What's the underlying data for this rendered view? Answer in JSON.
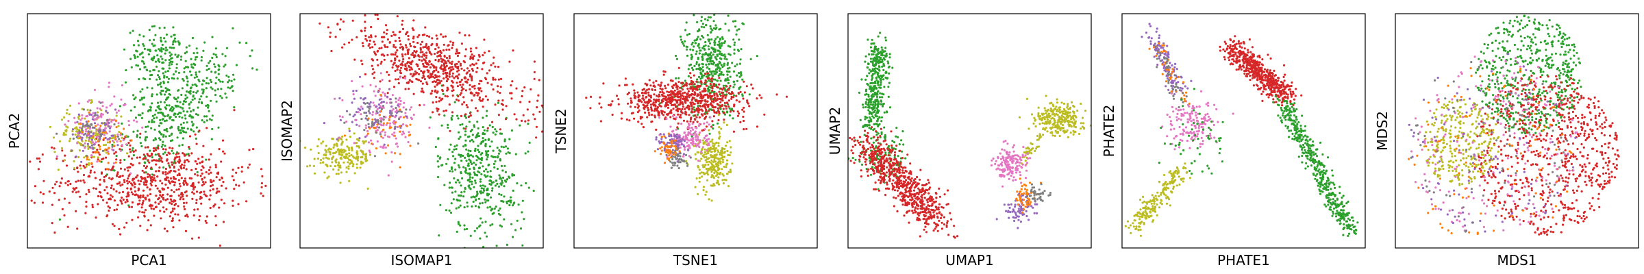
{
  "colors": {
    "green": "#2ca02c",
    "red": "#d62728",
    "olive": "#bcbd22",
    "pink": "#e377c2",
    "purple": "#9467bd",
    "orange": "#ff7f0e",
    "gray": "#7f7f7f",
    "frame": "#000000",
    "background": "#ffffff"
  },
  "chart_data": [
    {
      "type": "scatter",
      "xlabel": "PCA1",
      "ylabel": "PCA2",
      "title": "",
      "grid": false,
      "ticks": false,
      "xlim": [
        0,
        1
      ],
      "ylim": [
        0,
        1
      ],
      "clusters": [
        {
          "color": "green",
          "shape": "ellipse",
          "cx": 0.62,
          "cy": 0.6,
          "sx": 0.08,
          "sy": 0.16,
          "rot": -35,
          "n": 450
        },
        {
          "color": "green",
          "shape": "ellipse",
          "cx": 0.55,
          "cy": 0.82,
          "sx": 0.07,
          "sy": 0.06,
          "rot": 0,
          "n": 150
        },
        {
          "color": "red",
          "shape": "ellipse",
          "cx": 0.52,
          "cy": 0.28,
          "sx": 0.2,
          "sy": 0.09,
          "rot": 0,
          "n": 700
        },
        {
          "color": "olive",
          "shape": "ellipse",
          "cx": 0.25,
          "cy": 0.48,
          "sx": 0.07,
          "sy": 0.06,
          "rot": 0,
          "n": 150
        },
        {
          "color": "pink",
          "shape": "ellipse",
          "cx": 0.3,
          "cy": 0.52,
          "sx": 0.06,
          "sy": 0.07,
          "rot": 0,
          "n": 130
        },
        {
          "color": "purple",
          "shape": "ellipse",
          "cx": 0.28,
          "cy": 0.5,
          "sx": 0.05,
          "sy": 0.05,
          "rot": 0,
          "n": 60
        },
        {
          "color": "orange",
          "shape": "ellipse",
          "cx": 0.3,
          "cy": 0.46,
          "sx": 0.05,
          "sy": 0.05,
          "rot": 0,
          "n": 40
        },
        {
          "color": "gray",
          "shape": "ellipse",
          "cx": 0.27,
          "cy": 0.5,
          "sx": 0.05,
          "sy": 0.05,
          "rot": 0,
          "n": 40
        }
      ]
    },
    {
      "type": "scatter",
      "xlabel": "ISOMAP1",
      "ylabel": "ISOMAP2",
      "title": "",
      "grid": false,
      "ticks": false,
      "xlim": [
        0,
        1
      ],
      "ylim": [
        0,
        1
      ],
      "clusters": [
        {
          "color": "green",
          "shape": "ellipse",
          "cx": 0.74,
          "cy": 0.33,
          "sx": 0.08,
          "sy": 0.14,
          "rot": 10,
          "n": 450
        },
        {
          "color": "red",
          "shape": "ellipse",
          "cx": 0.55,
          "cy": 0.77,
          "sx": 0.2,
          "sy": 0.07,
          "rot": -25,
          "n": 700
        },
        {
          "color": "olive",
          "shape": "ellipse",
          "cx": 0.18,
          "cy": 0.39,
          "sx": 0.06,
          "sy": 0.04,
          "rot": 0,
          "n": 200
        },
        {
          "color": "pink",
          "shape": "ellipse",
          "cx": 0.35,
          "cy": 0.55,
          "sx": 0.07,
          "sy": 0.07,
          "rot": 0,
          "n": 150
        },
        {
          "color": "purple",
          "shape": "ellipse",
          "cx": 0.3,
          "cy": 0.58,
          "sx": 0.06,
          "sy": 0.05,
          "rot": 0,
          "n": 70
        },
        {
          "color": "orange",
          "shape": "ellipse",
          "cx": 0.35,
          "cy": 0.52,
          "sx": 0.06,
          "sy": 0.05,
          "rot": 0,
          "n": 40
        },
        {
          "color": "gray",
          "shape": "ellipse",
          "cx": 0.33,
          "cy": 0.55,
          "sx": 0.06,
          "sy": 0.05,
          "rot": 0,
          "n": 40
        }
      ]
    },
    {
      "type": "scatter",
      "xlabel": "TSNE1",
      "ylabel": "TSNE2",
      "title": "",
      "grid": false,
      "ticks": false,
      "xlim": [
        0,
        1
      ],
      "ylim": [
        0,
        1
      ],
      "clusters": [
        {
          "color": "green",
          "shape": "ellipse",
          "cx": 0.57,
          "cy": 0.78,
          "sx": 0.06,
          "sy": 0.11,
          "rot": 0,
          "n": 450
        },
        {
          "color": "red",
          "shape": "ellipse",
          "cx": 0.45,
          "cy": 0.63,
          "sx": 0.13,
          "sy": 0.045,
          "rot": 0,
          "n": 700
        },
        {
          "color": "olive",
          "shape": "ellipse",
          "cx": 0.57,
          "cy": 0.37,
          "sx": 0.035,
          "sy": 0.06,
          "rot": 0,
          "n": 250
        },
        {
          "color": "pink",
          "shape": "ellipse",
          "cx": 0.48,
          "cy": 0.47,
          "sx": 0.04,
          "sy": 0.04,
          "rot": 0,
          "n": 150
        },
        {
          "color": "purple",
          "shape": "ellipse",
          "cx": 0.41,
          "cy": 0.44,
          "sx": 0.03,
          "sy": 0.03,
          "rot": 0,
          "n": 80
        },
        {
          "color": "orange",
          "shape": "ellipse",
          "cx": 0.39,
          "cy": 0.42,
          "sx": 0.02,
          "sy": 0.03,
          "rot": 0,
          "n": 50
        },
        {
          "color": "gray",
          "shape": "ellipse",
          "cx": 0.43,
          "cy": 0.38,
          "sx": 0.02,
          "sy": 0.02,
          "rot": 0,
          "n": 40
        }
      ]
    },
    {
      "type": "scatter",
      "xlabel": "UMAP1",
      "ylabel": "UMAP2",
      "title": "",
      "grid": false,
      "ticks": false,
      "xlim": [
        0,
        1
      ],
      "ylim": [
        0,
        1
      ],
      "clusters": [
        {
          "color": "green",
          "shape": "line",
          "x0": 0.13,
          "y0": 0.86,
          "x1": 0.1,
          "y1": 0.52,
          "sx": 0.025,
          "sy": 0.025,
          "n": 350
        },
        {
          "color": "green",
          "shape": "ellipse",
          "cx": 0.14,
          "cy": 0.4,
          "sx": 0.05,
          "sy": 0.06,
          "rot": 0,
          "n": 120
        },
        {
          "color": "red",
          "shape": "line",
          "x0": 0.08,
          "y0": 0.44,
          "x1": 0.37,
          "y1": 0.12,
          "sx": 0.04,
          "sy": 0.04,
          "n": 700
        },
        {
          "color": "olive",
          "shape": "ellipse",
          "cx": 0.86,
          "cy": 0.55,
          "sx": 0.05,
          "sy": 0.035,
          "rot": 0,
          "n": 250
        },
        {
          "color": "olive",
          "shape": "line",
          "x0": 0.8,
          "y0": 0.5,
          "x1": 0.73,
          "y1": 0.38,
          "sx": 0.01,
          "sy": 0.01,
          "n": 40
        },
        {
          "color": "pink",
          "shape": "ellipse",
          "cx": 0.67,
          "cy": 0.36,
          "sx": 0.035,
          "sy": 0.03,
          "rot": 0,
          "n": 150
        },
        {
          "color": "purple",
          "shape": "ellipse",
          "cx": 0.71,
          "cy": 0.17,
          "sx": 0.03,
          "sy": 0.03,
          "rot": 0,
          "n": 80
        },
        {
          "color": "orange",
          "shape": "ellipse",
          "cx": 0.73,
          "cy": 0.22,
          "sx": 0.02,
          "sy": 0.03,
          "rot": 0,
          "n": 50
        },
        {
          "color": "gray",
          "shape": "ellipse",
          "cx": 0.78,
          "cy": 0.23,
          "sx": 0.02,
          "sy": 0.02,
          "rot": 0,
          "n": 40
        }
      ]
    },
    {
      "type": "scatter",
      "xlabel": "PHATE1",
      "ylabel": "PHATE2",
      "title": "",
      "grid": false,
      "ticks": false,
      "xlim": [
        0,
        1
      ],
      "ylim": [
        0,
        1
      ],
      "clusters": [
        {
          "color": "red",
          "shape": "line",
          "x0": 0.45,
          "y0": 0.86,
          "x1": 0.68,
          "y1": 0.64,
          "sx": 0.025,
          "sy": 0.025,
          "n": 550
        },
        {
          "color": "green",
          "shape": "line",
          "x0": 0.66,
          "y0": 0.62,
          "x1": 0.94,
          "y1": 0.07,
          "sx": 0.02,
          "sy": 0.02,
          "n": 450
        },
        {
          "color": "olive",
          "shape": "line",
          "x0": 0.05,
          "y0": 0.09,
          "x1": 0.25,
          "y1": 0.34,
          "sx": 0.02,
          "sy": 0.02,
          "n": 200
        },
        {
          "color": "pink",
          "shape": "ellipse",
          "cx": 0.3,
          "cy": 0.53,
          "sx": 0.05,
          "sy": 0.05,
          "rot": 0,
          "n": 150
        },
        {
          "color": "purple",
          "shape": "line",
          "x0": 0.12,
          "y0": 0.92,
          "x1": 0.24,
          "y1": 0.66,
          "sx": 0.02,
          "sy": 0.02,
          "n": 120
        },
        {
          "color": "orange",
          "shape": "line",
          "x0": 0.14,
          "y0": 0.88,
          "x1": 0.26,
          "y1": 0.62,
          "sx": 0.015,
          "sy": 0.015,
          "n": 40
        },
        {
          "color": "gray",
          "shape": "line",
          "x0": 0.15,
          "y0": 0.85,
          "x1": 0.25,
          "y1": 0.62,
          "sx": 0.015,
          "sy": 0.015,
          "n": 40
        },
        {
          "color": "green",
          "shape": "ellipse",
          "cx": 0.3,
          "cy": 0.45,
          "sx": 0.06,
          "sy": 0.08,
          "rot": 0,
          "n": 50
        }
      ]
    },
    {
      "type": "scatter",
      "xlabel": "MDS1",
      "ylabel": "MDS2",
      "title": "",
      "grid": false,
      "ticks": false,
      "xlim": [
        0,
        1
      ],
      "ylim": [
        0,
        1
      ],
      "clusters": [
        {
          "color": "green",
          "shape": "disc",
          "cx": 0.55,
          "cy": 0.74,
          "r": 0.22,
          "n": 550
        },
        {
          "color": "red",
          "shape": "disc",
          "cx": 0.62,
          "cy": 0.4,
          "r": 0.3,
          "n": 700
        },
        {
          "color": "olive",
          "shape": "disc",
          "cx": 0.27,
          "cy": 0.45,
          "r": 0.16,
          "n": 300
        },
        {
          "color": "pink",
          "shape": "disc",
          "cx": 0.4,
          "cy": 0.45,
          "r": 0.35,
          "n": 200
        },
        {
          "color": "purple",
          "shape": "disc",
          "cx": 0.4,
          "cy": 0.45,
          "r": 0.35,
          "n": 100
        },
        {
          "color": "orange",
          "shape": "disc",
          "cx": 0.4,
          "cy": 0.4,
          "r": 0.35,
          "n": 100
        },
        {
          "color": "gray",
          "shape": "disc",
          "cx": 0.4,
          "cy": 0.45,
          "r": 0.35,
          "n": 80
        }
      ]
    }
  ]
}
